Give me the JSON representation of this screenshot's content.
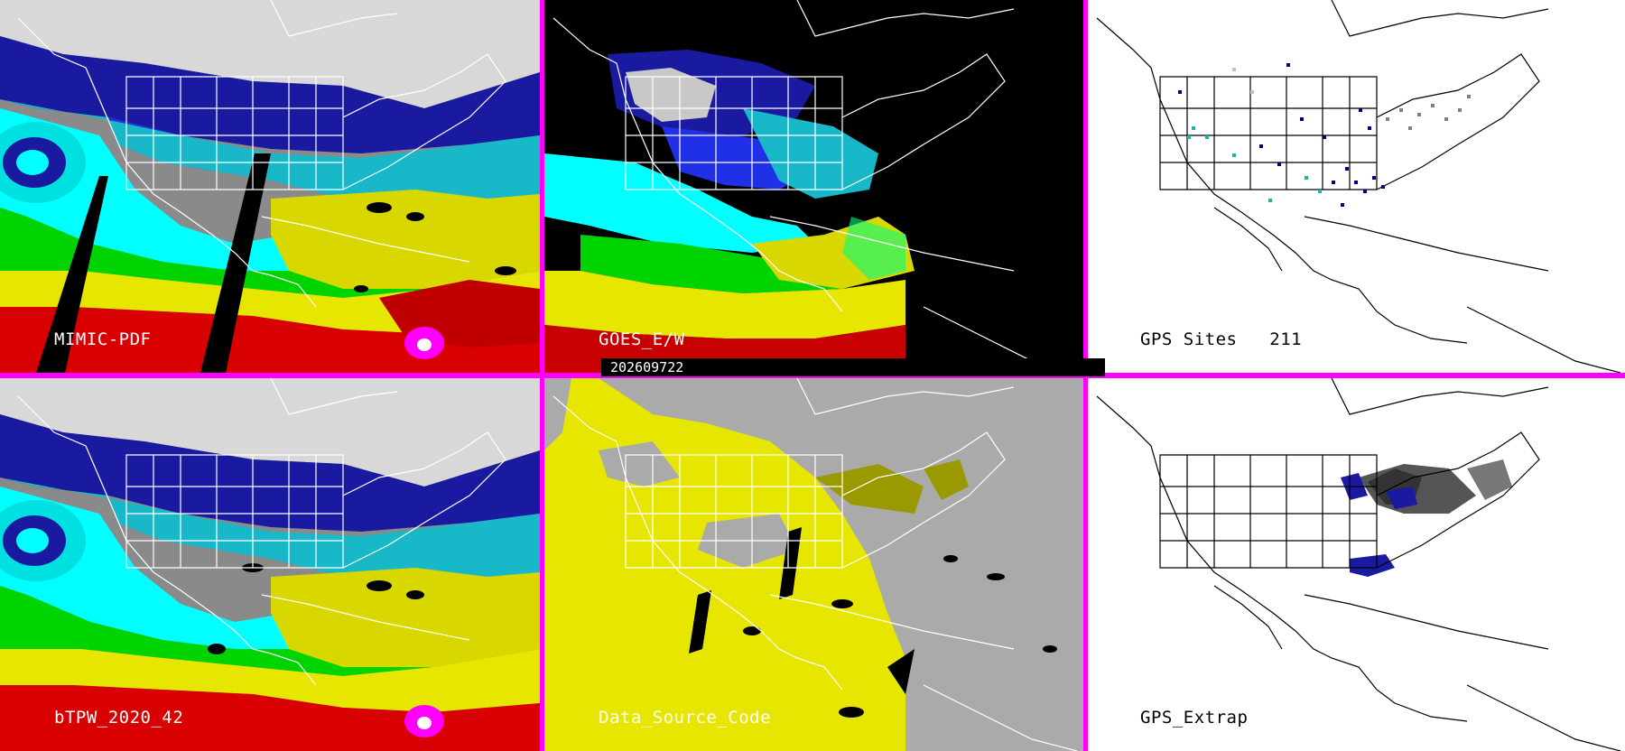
{
  "panels": [
    {
      "label": "MIMIC-PDF"
    },
    {
      "label": "GOES_E/W"
    },
    {
      "label": "GPS Sites   211"
    },
    {
      "label": "bTPW_2020_42"
    },
    {
      "label": "Data_Source_Code"
    },
    {
      "label": "GPS_Extrap"
    }
  ],
  "timestamp": "202609722",
  "colors": {
    "divider": "#ff00ff",
    "coastline_on_dark": "#ffffff",
    "coastline_on_light": "#000000",
    "tpw_ramp": [
      "#000000",
      "#9a9a9a",
      "#dcdcdc",
      "#14148c",
      "#1e1ee6",
      "#18b4c8",
      "#00ffff",
      "#00dc00",
      "#64ff64",
      "#e6e600",
      "#ff0000",
      "#c80000",
      "#ff00ff"
    ],
    "data_source": [
      "#aaaaaa",
      "#e6e600",
      "#999900",
      "#000000"
    ],
    "gps_site_marks": [
      "#000080",
      "#20b2aa",
      "#808080",
      "#c0c0c0"
    ]
  }
}
